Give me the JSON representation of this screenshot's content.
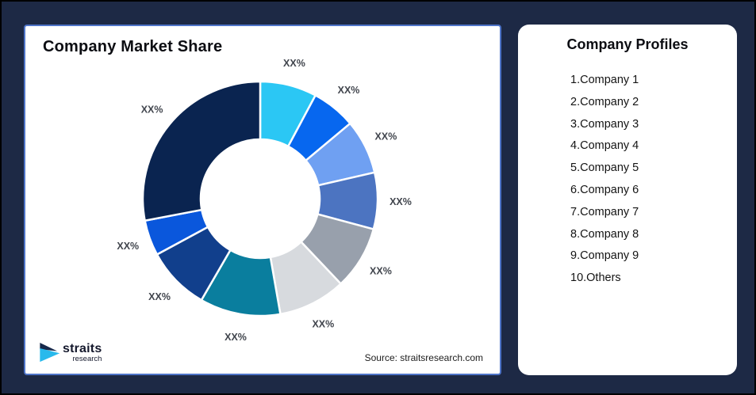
{
  "page": {
    "background_color": "#1D2945",
    "outer_border_color": "#000000"
  },
  "chart_card": {
    "title": "Company Market Share",
    "source": "Source: straitsresearch.com",
    "border_color": "#4E74C8"
  },
  "logo": {
    "text": "straits",
    "subtext": "research",
    "colors": {
      "dark": "#16294B",
      "cyan": "#29B9EC"
    }
  },
  "profiles_card": {
    "title": "Company Profiles",
    "items": [
      "1.Company 1",
      "2.Company 2",
      "3.Company 3",
      "4.Company 4",
      "5.Company 5",
      "6.Company 6",
      "7.Company 7",
      "8.Company 8",
      "9.Company 9",
      "10.Others"
    ]
  },
  "chart_data": {
    "type": "pie",
    "subtype": "donut",
    "title": "Company Market Share",
    "start_angle_deg": 0,
    "direction": "clockwise",
    "inner_radius_ratio": 0.51,
    "gap_color": "#ffffff",
    "label_color": "#41454d",
    "label_position": "outside",
    "segments": [
      {
        "name": "Company 1",
        "label": "XX%",
        "value": 7.8,
        "color": "#2BC7F4"
      },
      {
        "name": "Company 2",
        "label": "XX%",
        "value": 6.1,
        "color": "#0767EF"
      },
      {
        "name": "Company 3",
        "label": "XX%",
        "value": 7.5,
        "color": "#6FA0F2"
      },
      {
        "name": "Company 4",
        "label": "XX%",
        "value": 7.8,
        "color": "#4C74C1"
      },
      {
        "name": "Company 5",
        "label": "XX%",
        "value": 8.75,
        "color": "#98A0AC"
      },
      {
        "name": "Company 6",
        "label": "XX%",
        "value": 9.3,
        "color": "#D7DADE"
      },
      {
        "name": "Company 7",
        "label": "XX%",
        "value": 11.1,
        "color": "#0A7E9E"
      },
      {
        "name": "Company 8",
        "label": "XX%",
        "value": 8.75,
        "color": "#113F8C"
      },
      {
        "name": "Company 9",
        "label": "XX%",
        "value": 4.9,
        "color": "#0A57DC"
      },
      {
        "name": "Others",
        "label": "XX%",
        "value": 28.0,
        "color": "#0A2450"
      }
    ]
  }
}
